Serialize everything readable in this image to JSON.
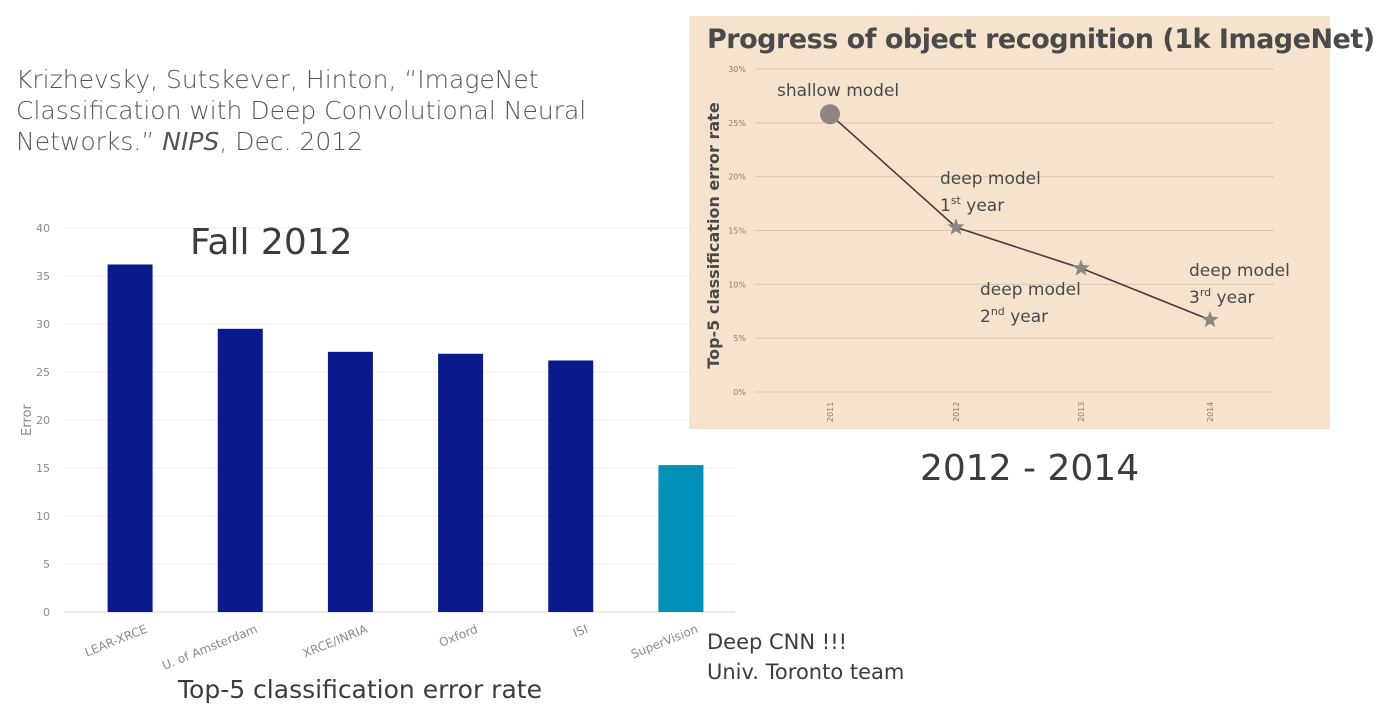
{
  "citation": {
    "line1": "Krizhevsky, Sutskever, Hinton, “ImageNet",
    "line2": "Classification with Deep Convolutional Neural",
    "line3_a": "Networks.” ",
    "line3_venue": "NIPS",
    "line3_b": ", Dec. 2012"
  },
  "left": {
    "title": "Fall 2012",
    "bottom_label": "Top-5 classification error rate",
    "note_line1": "Deep CNN !!!",
    "note_line2": "Univ. Toronto team"
  },
  "right": {
    "title": "Progress of object recognition (1k ImageNet)",
    "range_label": "2012 - 2014"
  },
  "chart_data": [
    {
      "type": "bar",
      "categories": [
        "LEAR-XRCE",
        "U. of Amsterdam",
        "XRCE/INRIA",
        "Oxford",
        "ISI",
        "SuperVision"
      ],
      "values": [
        36.2,
        29.5,
        27.1,
        26.9,
        26.2,
        15.3
      ],
      "colors": [
        "#0a1a8c",
        "#0a1a8c",
        "#0a1a8c",
        "#0a1a8c",
        "#0a1a8c",
        "#0090b8"
      ],
      "title": "Fall 2012",
      "xlabel": "Top-5 classification error rate",
      "ylabel": "Error",
      "yticks": [
        "0",
        "5",
        "10",
        "15",
        "20",
        "25",
        "30",
        "35",
        "40"
      ],
      "ylim": [
        0,
        40
      ],
      "grid": true
    },
    {
      "type": "line",
      "x": [
        "2011",
        "2012",
        "2013",
        "2014"
      ],
      "values": [
        25.8,
        15.3,
        11.5,
        6.7
      ],
      "markers": [
        "circle",
        "star",
        "star",
        "star"
      ],
      "title": "Progress of object recognition (1k ImageNet)",
      "ylabel": "Top-5 classification error rate",
      "yticks": [
        "0%",
        "5%",
        "10%",
        "15%",
        "20%",
        "25%",
        "30%"
      ],
      "ylim": [
        0,
        30
      ],
      "grid": true,
      "annotations": [
        {
          "text": "shallow model",
          "sup": "",
          "suffix": ""
        },
        {
          "text": "deep model",
          "line2_prefix": "1",
          "sup": "st",
          "suffix": " year"
        },
        {
          "text": "deep model",
          "line2_prefix": "2",
          "sup": "nd",
          "suffix": " year"
        },
        {
          "text": "deep model",
          "line2_prefix": "3",
          "sup": "rd",
          "suffix": " year"
        }
      ]
    }
  ]
}
